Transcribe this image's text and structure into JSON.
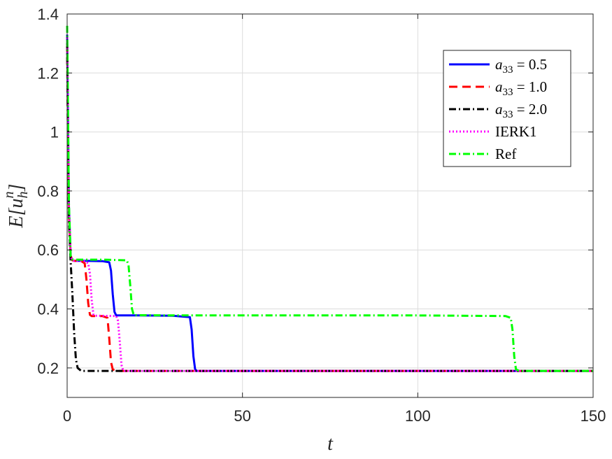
{
  "chart_data": {
    "type": "line",
    "title": "",
    "xlabel": "t",
    "ylabel_parts": {
      "main": "E[u",
      "sub": "h",
      "sup": "n",
      "close": "]"
    },
    "xlim": [
      0,
      150
    ],
    "ylim": [
      0.1,
      1.4
    ],
    "xticks": [
      0,
      50,
      100,
      150
    ],
    "xtick_labels": [
      "0",
      "50",
      "100",
      "150"
    ],
    "yticks": [
      0.2,
      0.4,
      0.6,
      0.8,
      1.0,
      1.2,
      1.4
    ],
    "ytick_labels": [
      "0.2",
      "0.4",
      "0.6",
      "0.8",
      "1",
      "1.2",
      "1.4"
    ],
    "grid": true,
    "legend_position": "top-right",
    "series": [
      {
        "label_math": {
          "var": "a",
          "sub": "33",
          "rest": " = 0.5"
        },
        "color": "#0000ff",
        "dash": "solid",
        "x": [
          0,
          0.2,
          0.5,
          1,
          1.5,
          2,
          5,
          10,
          12,
          12.5,
          13,
          13.5,
          14,
          20,
          30,
          35,
          35.5,
          36,
          36.5,
          37,
          40,
          150
        ],
        "y": [
          1.33,
          1.1,
          0.75,
          0.58,
          0.565,
          0.563,
          0.563,
          0.562,
          0.558,
          0.53,
          0.45,
          0.39,
          0.378,
          0.378,
          0.377,
          0.372,
          0.33,
          0.24,
          0.195,
          0.19,
          0.19,
          0.19
        ]
      },
      {
        "label_math": {
          "var": "a",
          "sub": "33",
          "rest": " = 1.0"
        },
        "color": "#ff0000",
        "dash": "dashed",
        "x": [
          0,
          0.2,
          0.5,
          1,
          1.5,
          2,
          4,
          5,
          5.5,
          6,
          6.5,
          7,
          10,
          11.5,
          12,
          12.5,
          13,
          14,
          150
        ],
        "y": [
          1.3,
          1.05,
          0.72,
          0.58,
          0.565,
          0.563,
          0.562,
          0.555,
          0.5,
          0.42,
          0.38,
          0.376,
          0.376,
          0.37,
          0.3,
          0.22,
          0.195,
          0.19,
          0.19
        ]
      },
      {
        "label_math": {
          "var": "a",
          "sub": "33",
          "rest": " = 2.0"
        },
        "color": "#000000",
        "dash": "dashdot",
        "x": [
          0,
          0.2,
          0.5,
          1,
          1.5,
          2,
          2.5,
          3,
          4,
          150
        ],
        "y": [
          1.3,
          1.0,
          0.7,
          0.56,
          0.45,
          0.32,
          0.23,
          0.2,
          0.19,
          0.19
        ]
      },
      {
        "label_math": {
          "text": "IERK1"
        },
        "color": "#ff00ff",
        "dash": "dotted",
        "x": [
          0,
          0.2,
          0.5,
          1,
          1.5,
          2,
          5,
          6,
          6.5,
          7,
          7.5,
          8,
          14,
          14.5,
          15,
          15.5,
          16,
          150
        ],
        "y": [
          1.32,
          1.08,
          0.74,
          0.58,
          0.565,
          0.563,
          0.562,
          0.555,
          0.52,
          0.43,
          0.38,
          0.377,
          0.376,
          0.36,
          0.29,
          0.21,
          0.19,
          0.19
        ]
      },
      {
        "label_math": {
          "text": "Ref"
        },
        "color": "#00ff00",
        "dash": "dashdot",
        "x": [
          0,
          0.2,
          0.5,
          1,
          1.5,
          2,
          10,
          17,
          17.5,
          18,
          18.5,
          19,
          30,
          60,
          100,
          125,
          126.5,
          127,
          127.5,
          128,
          129,
          150
        ],
        "y": [
          1.36,
          1.12,
          0.76,
          0.58,
          0.568,
          0.567,
          0.567,
          0.565,
          0.55,
          0.48,
          0.4,
          0.379,
          0.378,
          0.378,
          0.378,
          0.376,
          0.37,
          0.33,
          0.24,
          0.195,
          0.19,
          0.19
        ]
      }
    ]
  }
}
